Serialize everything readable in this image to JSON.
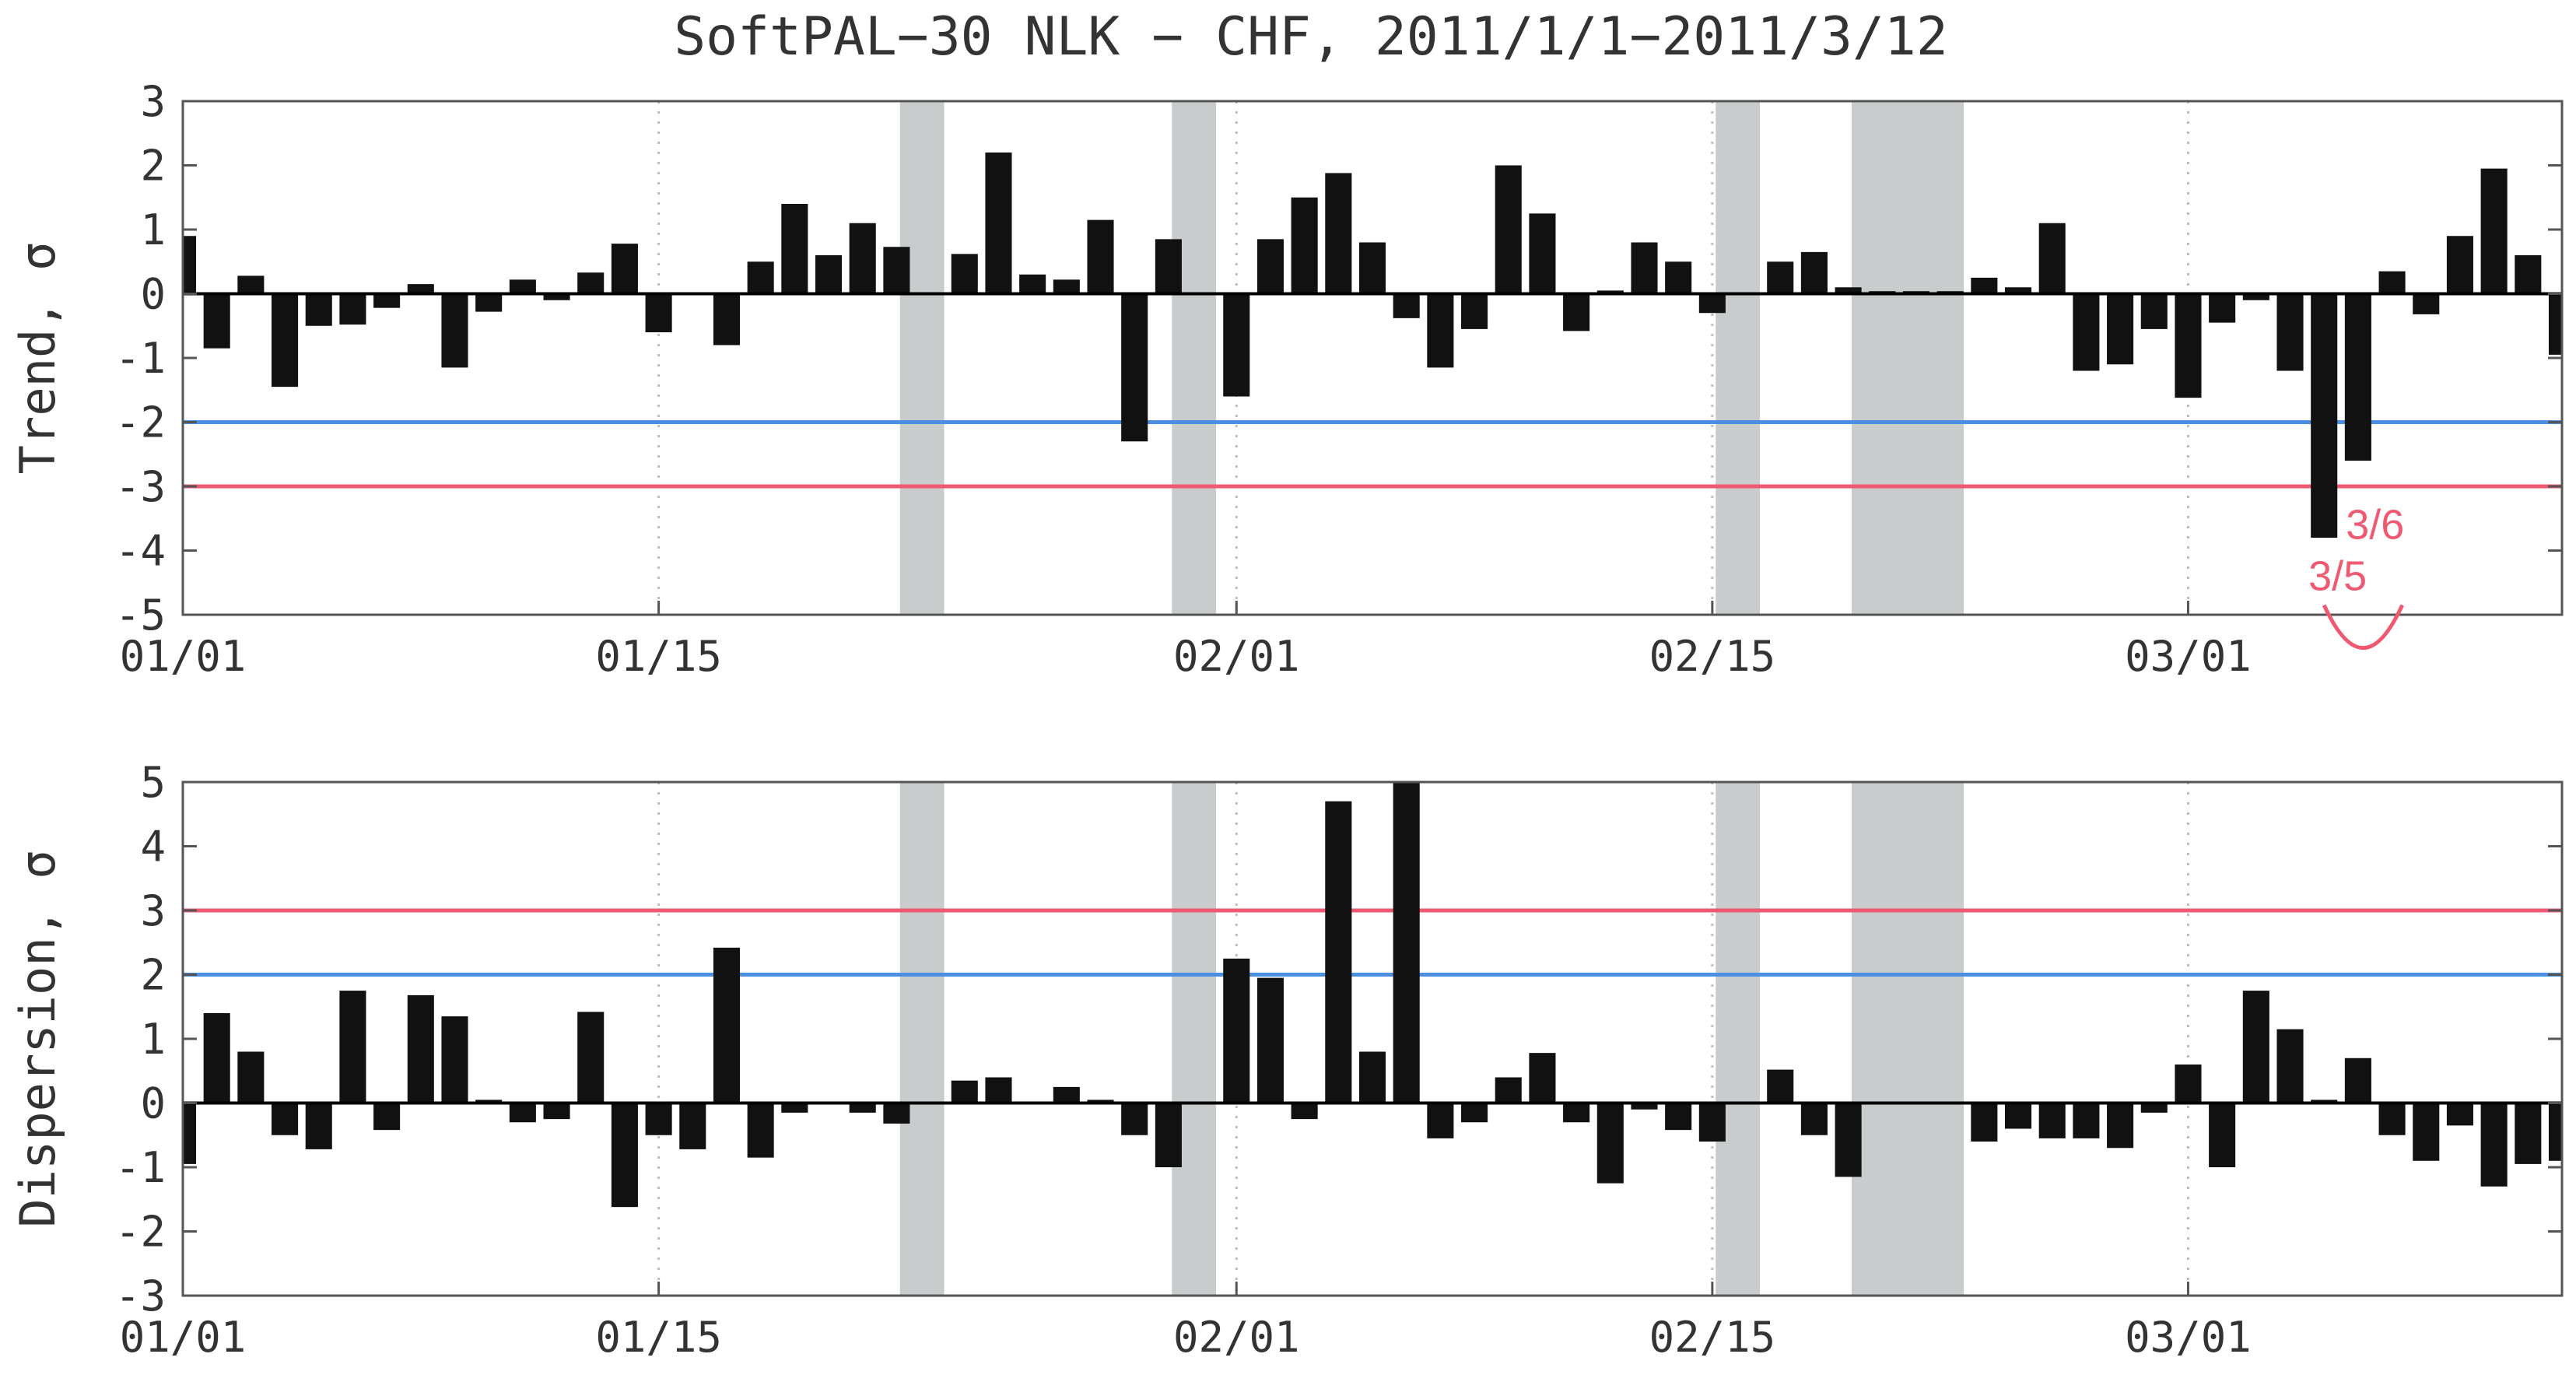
{
  "title": "SoftPAL−30 NLK − CHF, 2011/1/1−2011/3/12",
  "colors": {
    "bar": "#111111",
    "shade": "#c8cccc",
    "blue_line": "#4a8fe0",
    "red_line": "#ef5a72",
    "annotation": "#ef5a72",
    "frame": "#555555",
    "grid": "#bdbdbd"
  },
  "chart_data": [
    {
      "type": "bar",
      "title": "SoftPAL−30 NLK − CHF, 2011/1/1−2011/3/12",
      "xlabel": "",
      "ylabel": "Trend, σ",
      "ylim": [
        -5,
        3
      ],
      "yticks": [
        3,
        2,
        1,
        0,
        -1,
        -2,
        -3,
        -4,
        -5
      ],
      "x_range_days": [
        0,
        70
      ],
      "x_ticks": [
        {
          "day": 0,
          "label": "01/01"
        },
        {
          "day": 14,
          "label": "01/15"
        },
        {
          "day": 31,
          "label": "02/01"
        },
        {
          "day": 45,
          "label": "02/15"
        },
        {
          "day": 59,
          "label": "03/01"
        }
      ],
      "reference_lines": [
        {
          "y": -2,
          "color": "#4a8fe0"
        },
        {
          "y": -3,
          "color": "#ef5a72"
        }
      ],
      "shaded_ranges_days": [
        [
          21.1,
          22.4
        ],
        [
          29.1,
          30.4
        ],
        [
          45.1,
          46.4
        ],
        [
          49.1,
          52.4
        ]
      ],
      "annotations": [
        {
          "text": "3/5",
          "day": 63.4,
          "y": -4.4
        },
        {
          "text": "3/6",
          "day": 64.5,
          "y": -3.6
        }
      ],
      "x": [
        0,
        1,
        2,
        3,
        4,
        5,
        6,
        7,
        8,
        9,
        10,
        11,
        12,
        13,
        14,
        15,
        16,
        17,
        18,
        19,
        20,
        21,
        22,
        23,
        24,
        25,
        26,
        27,
        28,
        29,
        30,
        31,
        32,
        33,
        34,
        35,
        36,
        37,
        38,
        39,
        40,
        41,
        42,
        43,
        44,
        45,
        46,
        47,
        48,
        49,
        50,
        51,
        52,
        53,
        54,
        55,
        56,
        57,
        58,
        59,
        60,
        61,
        62,
        63,
        64,
        65,
        66,
        67,
        68,
        69,
        70
      ],
      "values": [
        0.9,
        -0.85,
        0.28,
        -1.45,
        -0.5,
        -0.48,
        -0.22,
        0.15,
        -1.15,
        -0.28,
        0.22,
        -0.1,
        0.33,
        0.78,
        -0.6,
        0,
        -0.8,
        0.5,
        1.4,
        0.6,
        1.1,
        0.73,
        0,
        0.62,
        2.2,
        0.3,
        0.22,
        1.15,
        -2.3,
        0.85,
        0,
        -1.6,
        0.85,
        1.5,
        1.88,
        0.8,
        -0.38,
        -1.15,
        -0.55,
        2.0,
        1.25,
        -0.58,
        0.05,
        0.8,
        0.5,
        -0.3,
        0,
        0.5,
        0.65,
        0.1,
        0.04,
        0.04,
        0.04,
        0.25,
        0.1,
        1.1,
        -1.2,
        -1.1,
        -0.55,
        -1.62,
        -0.45,
        -0.1,
        -1.2,
        -3.8,
        -2.6,
        0.35,
        -0.32,
        0.9,
        1.95,
        0.6,
        -0.95
      ]
    },
    {
      "type": "bar",
      "title": "",
      "xlabel": "",
      "ylabel": "Dispersion, σ",
      "ylim": [
        -3,
        5
      ],
      "yticks": [
        5,
        4,
        3,
        2,
        1,
        0,
        -1,
        -2,
        -3
      ],
      "x_range_days": [
        0,
        70
      ],
      "x_ticks": [
        {
          "day": 0,
          "label": "01/01"
        },
        {
          "day": 14,
          "label": "01/15"
        },
        {
          "day": 31,
          "label": "02/01"
        },
        {
          "day": 45,
          "label": "02/15"
        },
        {
          "day": 59,
          "label": "03/01"
        }
      ],
      "reference_lines": [
        {
          "y": 2,
          "color": "#4a8fe0"
        },
        {
          "y": 3,
          "color": "#ef5a72"
        }
      ],
      "shaded_ranges_days": [
        [
          21.1,
          22.4
        ],
        [
          29.1,
          30.4
        ],
        [
          45.1,
          46.4
        ],
        [
          49.1,
          52.4
        ]
      ],
      "x": [
        0,
        1,
        2,
        3,
        4,
        5,
        6,
        7,
        8,
        9,
        10,
        11,
        12,
        13,
        14,
        15,
        16,
        17,
        18,
        19,
        20,
        21,
        22,
        23,
        24,
        25,
        26,
        27,
        28,
        29,
        30,
        31,
        32,
        33,
        34,
        35,
        36,
        37,
        38,
        39,
        40,
        41,
        42,
        43,
        44,
        45,
        46,
        47,
        48,
        49,
        50,
        51,
        52,
        53,
        54,
        55,
        56,
        57,
        58,
        59,
        60,
        61,
        62,
        63,
        64,
        65,
        66,
        67,
        68,
        69,
        70
      ],
      "values": [
        -0.95,
        1.4,
        0.8,
        -0.5,
        -0.72,
        1.75,
        -0.42,
        1.68,
        1.35,
        0.05,
        -0.3,
        -0.25,
        1.42,
        -1.62,
        -0.5,
        -0.72,
        2.42,
        -0.85,
        -0.15,
        0,
        -0.15,
        -0.32,
        0,
        0.35,
        0.4,
        0,
        0.25,
        0.05,
        -0.5,
        -1.0,
        0,
        2.25,
        1.95,
        -0.25,
        4.7,
        0.8,
        5.0,
        -0.55,
        -0.3,
        0.4,
        0.78,
        -0.3,
        -1.25,
        -0.1,
        -0.42,
        -0.6,
        0,
        0.52,
        -0.5,
        -1.15,
        0,
        0,
        0,
        -0.6,
        -0.4,
        -0.55,
        -0.55,
        -0.7,
        -0.15,
        0.6,
        -1.0,
        1.75,
        1.15,
        0.05,
        0.7,
        -0.5,
        -0.9,
        -0.35,
        -1.3,
        -0.95,
        -0.9
      ]
    }
  ]
}
